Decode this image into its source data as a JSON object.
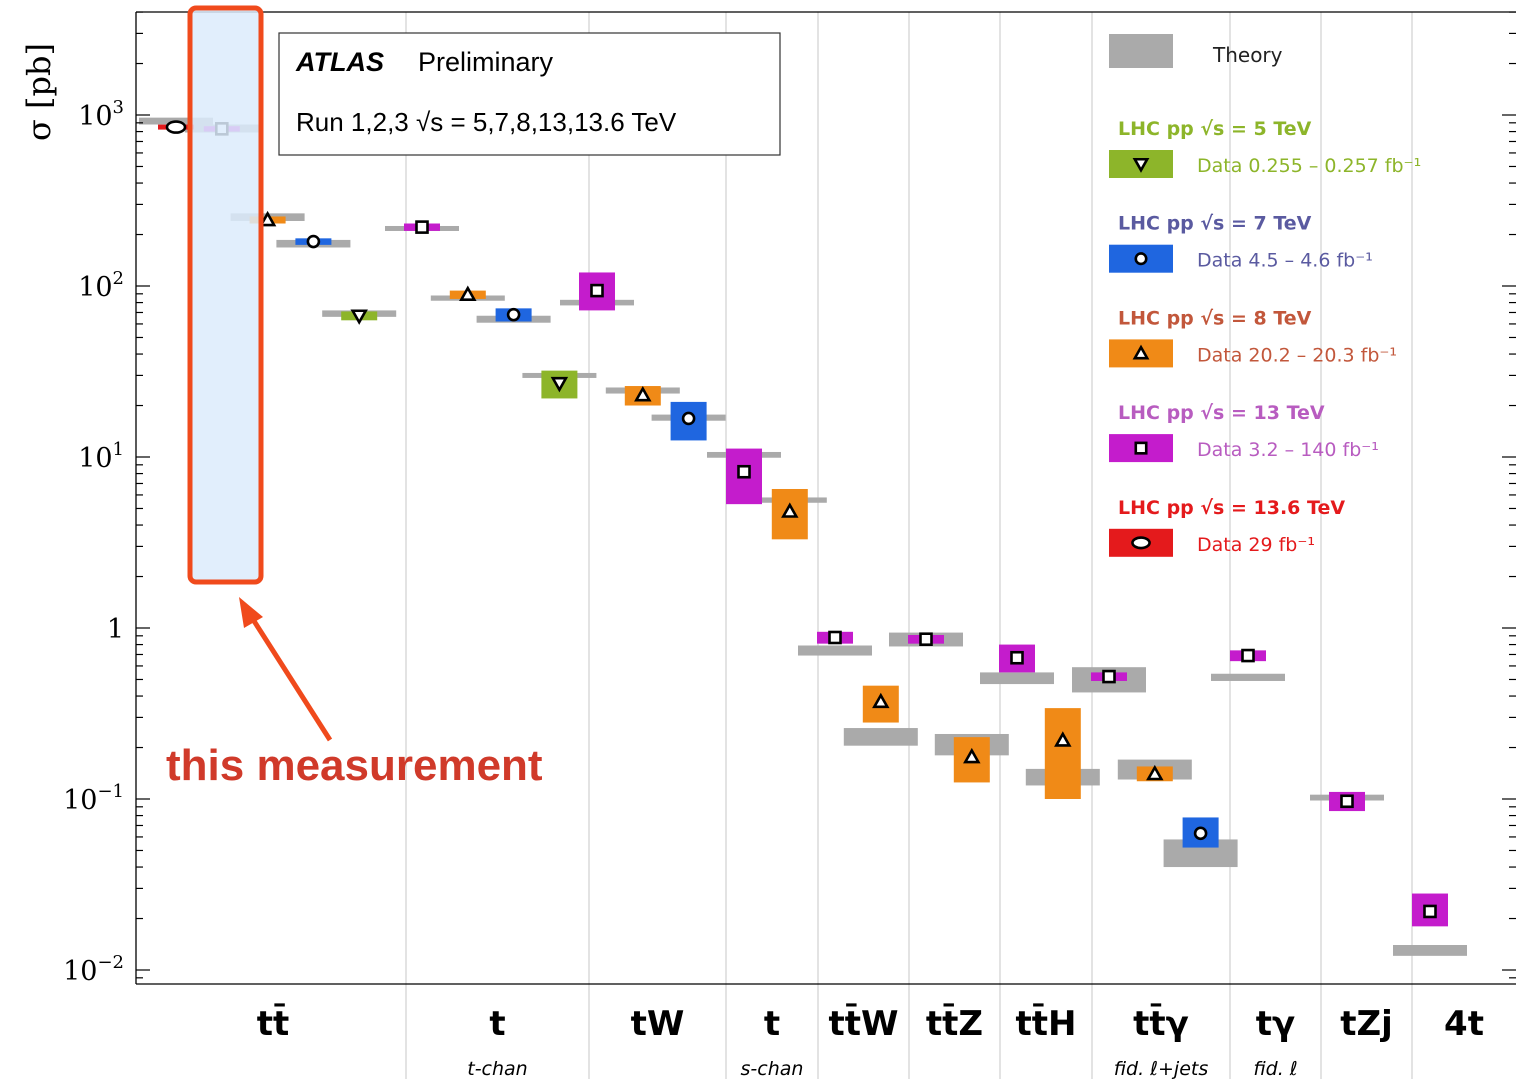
{
  "chart_data": {
    "type": "scatter",
    "title": "",
    "ylabel": "σ [pb]",
    "yscale": "log",
    "ylim": [
      0.008,
      4000
    ],
    "yticks": [
      {
        "value": 0.01,
        "base": "10",
        "exp": "−2"
      },
      {
        "value": 0.1,
        "base": "10",
        "exp": "−1"
      },
      {
        "value": 1,
        "base": "1",
        "exp": ""
      },
      {
        "value": 10,
        "base": "10",
        "exp": "1"
      },
      {
        "value": 100,
        "base": "10",
        "exp": "2"
      },
      {
        "value": 1000,
        "base": "10",
        "exp": "3"
      }
    ],
    "grid": "vertical category separators",
    "categories": [
      {
        "label": "tt̄",
        "sublabel": ""
      },
      {
        "label": "t",
        "sublabel": "t-chan"
      },
      {
        "label": "tW",
        "sublabel": ""
      },
      {
        "label": "t",
        "sublabel": "s-chan"
      },
      {
        "label": "tt̄W",
        "sublabel": ""
      },
      {
        "label": "tt̄Z",
        "sublabel": ""
      },
      {
        "label": "tt̄H",
        "sublabel": ""
      },
      {
        "label": "tt̄γ",
        "sublabel": "fid. ℓ+jets"
      },
      {
        "label": "tγ",
        "sublabel": "fid. ℓ"
      },
      {
        "label": "tZj",
        "sublabel": ""
      },
      {
        "label": "4t",
        "sublabel": ""
      }
    ],
    "annotation_box": {
      "line1_bold": "ATLAS",
      "line1_rest": "Preliminary",
      "line2": "Run 1,2,3  √s = 5,7,8,13,13.6 TeV"
    },
    "highlight": {
      "text": "this measurement",
      "color": "#d03a2a"
    },
    "legend": {
      "placement": "top-right",
      "theory_label": "Theory",
      "entries": [
        {
          "key": "5",
          "title": "LHC pp  √s = 5 TeV",
          "data": "Data  0.255 – 0.257 fb⁻¹",
          "color": "#8db52a",
          "marker": "triangle-down"
        },
        {
          "key": "7",
          "title": "LHC pp  √s = 7 TeV",
          "data": "Data  4.5 – 4.6 fb⁻¹",
          "color": "#1f66e0",
          "marker": "circle"
        },
        {
          "key": "8",
          "title": "LHC pp  √s = 8 TeV",
          "data": "Data  20.2 – 20.3 fb⁻¹",
          "color": "#f08a17",
          "marker": "triangle-up"
        },
        {
          "key": "13",
          "title": "LHC pp  √s = 13 TeV",
          "data": "Data  3.2 – 140 fb⁻¹",
          "color": "#c41ccc",
          "marker": "square"
        },
        {
          "key": "13.6",
          "title": "LHC pp  √s = 13.6 TeV",
          "data": "Data  29 fb⁻¹",
          "color": "#e41a1c",
          "marker": "ellipse"
        }
      ],
      "title_colors": {
        "5": "#8db52a",
        "7": "#5a5aa0",
        "8": "#c2573b",
        "13": "#b85cc0",
        "13.6": "#e41a1c"
      },
      "theory_color": "#aaaaaa"
    },
    "points": [
      {
        "cat": 0,
        "energy": "13.6",
        "value": 850,
        "err": [
          830,
          870
        ],
        "theory": 923,
        "theory_band": [
          880,
          965
        ]
      },
      {
        "cat": 0,
        "energy": "13",
        "value": 830,
        "err": [
          800,
          860
        ],
        "theory": 834,
        "theory_band": [
          790,
          880
        ]
      },
      {
        "cat": 0,
        "energy": "8",
        "value": 243,
        "err": [
          232,
          255
        ],
        "theory": 253,
        "theory_band": [
          240,
          266
        ]
      },
      {
        "cat": 0,
        "energy": "7",
        "value": 182,
        "err": [
          174,
          190
        ],
        "theory": 177,
        "theory_band": [
          168,
          186
        ]
      },
      {
        "cat": 0,
        "energy": "5",
        "value": 67,
        "err": [
          63,
          71
        ],
        "theory": 69,
        "theory_band": [
          66,
          72
        ]
      },
      {
        "cat": 1,
        "energy": "13",
        "value": 221,
        "err": [
          210,
          232
        ],
        "theory": 217,
        "theory_band": [
          212,
          222
        ]
      },
      {
        "cat": 1,
        "energy": "8",
        "value": 89,
        "err": [
          84,
          94
        ],
        "theory": 85,
        "theory_band": [
          82,
          88
        ]
      },
      {
        "cat": 1,
        "energy": "7",
        "value": 68,
        "err": [
          62,
          74
        ],
        "theory": 64,
        "theory_band": [
          61,
          67
        ]
      },
      {
        "cat": 1,
        "energy": "5",
        "value": 27,
        "err": [
          22,
          32
        ],
        "theory": 30,
        "theory_band": [
          29,
          31
        ]
      },
      {
        "cat": 2,
        "energy": "13",
        "value": 94,
        "err": [
          72,
          120
        ],
        "theory": 80,
        "theory_band": [
          77,
          83
        ]
      },
      {
        "cat": 2,
        "energy": "8",
        "value": 23,
        "err": [
          20,
          26
        ],
        "theory": 24.5,
        "theory_band": [
          23.5,
          25.5
        ]
      },
      {
        "cat": 2,
        "energy": "7",
        "value": 16.8,
        "err": [
          12.5,
          21
        ],
        "theory": 17,
        "theory_band": [
          16.3,
          17.7
        ]
      },
      {
        "cat": 3,
        "energy": "13",
        "value": 8.2,
        "err": [
          5.3,
          11.2
        ],
        "theory": 10.3,
        "theory_band": [
          9.9,
          10.7
        ]
      },
      {
        "cat": 3,
        "energy": "8",
        "value": 4.8,
        "err": [
          3.3,
          6.5
        ],
        "theory": 5.6,
        "theory_band": [
          5.4,
          5.8
        ]
      },
      {
        "cat": 4,
        "energy": "13",
        "value": 0.88,
        "err": [
          0.81,
          0.95
        ],
        "theory": 0.73,
        "theory_band": [
          0.69,
          0.79
        ]
      },
      {
        "cat": 4,
        "energy": "8",
        "value": 0.37,
        "err": [
          0.28,
          0.46
        ],
        "theory": 0.23,
        "theory_band": [
          0.205,
          0.26
        ]
      },
      {
        "cat": 5,
        "energy": "13",
        "value": 0.86,
        "err": [
          0.81,
          0.91
        ],
        "theory": 0.86,
        "theory_band": [
          0.78,
          0.94
        ]
      },
      {
        "cat": 5,
        "energy": "8",
        "value": 0.176,
        "err": [
          0.125,
          0.23
        ],
        "theory": 0.21,
        "theory_band": [
          0.18,
          0.24
        ]
      },
      {
        "cat": 6,
        "energy": "13",
        "value": 0.67,
        "err": [
          0.55,
          0.8
        ],
        "theory": 0.507,
        "theory_band": [
          0.47,
          0.55
        ]
      },
      {
        "cat": 6,
        "energy": "8",
        "value": 0.22,
        "err": [
          0.1,
          0.34
        ],
        "theory": 0.134,
        "theory_band": [
          0.12,
          0.15
        ]
      },
      {
        "cat": 7,
        "energy": "13",
        "value": 0.52,
        "err": [
          0.49,
          0.55
        ],
        "theory": 0.5,
        "theory_band": [
          0.42,
          0.59
        ]
      },
      {
        "cat": 7,
        "energy": "8",
        "value": 0.14,
        "err": [
          0.127,
          0.155
        ],
        "theory": 0.15,
        "theory_band": [
          0.13,
          0.17
        ]
      },
      {
        "cat": 7,
        "energy": "7",
        "value": 0.063,
        "err": [
          0.052,
          0.078
        ],
        "theory": 0.048,
        "theory_band": [
          0.04,
          0.058
        ]
      },
      {
        "cat": 8,
        "energy": "13",
        "value": 0.69,
        "err": [
          0.64,
          0.74
        ],
        "theory": 0.515,
        "theory_band": [
          0.49,
          0.54
        ]
      },
      {
        "cat": 9,
        "energy": "13",
        "value": 0.097,
        "err": [
          0.085,
          0.11
        ],
        "theory": 0.102,
        "theory_band": [
          0.098,
          0.106
        ]
      },
      {
        "cat": 10,
        "energy": "13",
        "value": 0.022,
        "err": [
          0.018,
          0.028
        ],
        "theory": 0.013,
        "theory_band": [
          0.0121,
          0.014
        ]
      }
    ]
  }
}
